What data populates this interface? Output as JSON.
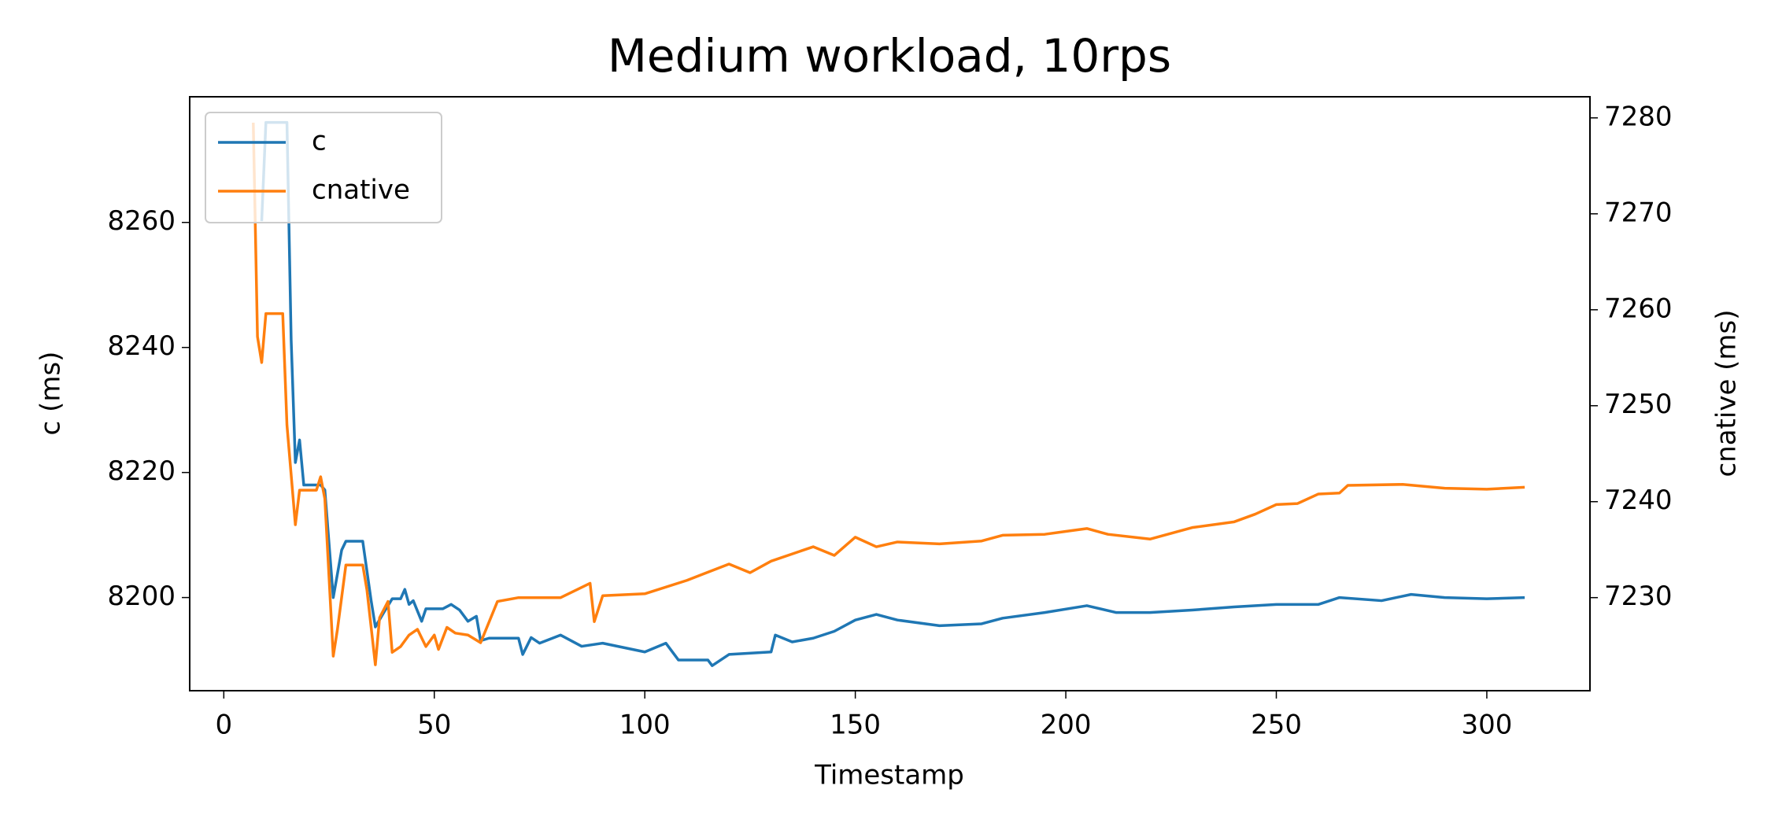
{
  "chart_data": {
    "type": "line",
    "title": "Medium workload, 10rps",
    "xlabel": "Timestamp",
    "ylabel": "c (ms)",
    "y2label": "cnative (ms)",
    "xlim": [
      -8.1,
      324.5
    ],
    "xticks": [
      0,
      50,
      100,
      150,
      200,
      250,
      300
    ],
    "ylim": [
      8185.1,
      8280.1
    ],
    "yticks": [
      8200,
      8220,
      8240,
      8260
    ],
    "y2lim": [
      7220.3,
      7282.2
    ],
    "y2ticks": [
      7230,
      7240,
      7250,
      7260,
      7270,
      7280
    ],
    "legend": "upper left",
    "series": [
      {
        "name": "c",
        "color": "#1f77b4",
        "x": [
          9,
          10,
          15,
          16,
          17,
          18,
          19,
          23,
          24,
          26,
          28,
          29,
          33,
          35,
          36,
          38,
          40,
          42,
          43,
          44,
          45,
          47,
          48,
          52,
          54,
          56,
          58,
          60,
          61,
          63,
          70,
          71,
          73,
          75,
          80,
          85,
          90,
          100,
          105,
          108,
          115,
          116,
          120,
          130,
          131,
          135,
          140,
          145,
          150,
          155,
          160,
          170,
          180,
          185,
          195,
          205,
          212,
          220,
          230,
          240,
          250,
          260,
          265,
          275,
          282,
          290,
          300,
          309
        ],
        "values": [
          8260.2,
          8276,
          8276,
          8241.2,
          8221.6,
          8225.2,
          8218,
          8218,
          8217.2,
          8200,
          8207.6,
          8209,
          8209,
          8199.5,
          8195.3,
          8197.6,
          8199.8,
          8199.8,
          8201.3,
          8198.9,
          8199.5,
          8196.2,
          8198.2,
          8198.2,
          8198.9,
          8198,
          8196.2,
          8197,
          8193.1,
          8193.5,
          8193.5,
          8190.9,
          8193.6,
          8192.7,
          8194,
          8192.2,
          8192.7,
          8191.3,
          8192.7,
          8190,
          8190,
          8189.1,
          8190.9,
          8191.3,
          8194,
          8192.9,
          8193.5,
          8194.6,
          8196.4,
          8197.3,
          8196.4,
          8195.5,
          8195.8,
          8196.7,
          8197.6,
          8198.7,
          8197.6,
          8197.6,
          8198,
          8198.5,
          8198.9,
          8198.9,
          8200,
          8199.5,
          8200.5,
          8200,
          8199.8,
          8200
        ]
      },
      {
        "name": "cnative",
        "color": "#ff7f0e",
        "axis": "y2",
        "x": [
          7,
          8,
          9,
          10,
          14,
          15,
          17,
          18,
          22,
          23,
          24,
          26,
          27,
          29,
          33,
          34,
          36,
          37,
          39,
          40,
          42,
          44,
          46,
          48,
          50,
          51,
          53,
          55,
          58,
          61,
          65,
          70,
          80,
          87,
          88,
          90,
          100,
          110,
          120,
          125,
          130,
          140,
          145,
          150,
          155,
          160,
          170,
          180,
          185,
          195,
          200,
          205,
          210,
          220,
          230,
          240,
          245,
          250,
          255,
          260,
          265,
          267,
          280,
          290,
          300,
          309
        ],
        "values": [
          7279.5,
          7257.2,
          7254.5,
          7259.6,
          7259.6,
          7248,
          7237.6,
          7241.2,
          7241.2,
          7242.6,
          7240.3,
          7223.9,
          7226.7,
          7233.4,
          7233.4,
          7230.8,
          7223,
          7227.9,
          7229.6,
          7224.3,
          7224.9,
          7226.1,
          7226.7,
          7224.9,
          7226.1,
          7224.6,
          7226.9,
          7226.3,
          7226.1,
          7225.3,
          7229.6,
          7230,
          7230,
          7231.5,
          7227.5,
          7230.2,
          7230.4,
          7231.8,
          7233.5,
          7232.6,
          7233.8,
          7235.3,
          7234.4,
          7236.3,
          7235.3,
          7235.8,
          7235.6,
          7235.9,
          7236.5,
          7236.6,
          7236.9,
          7237.2,
          7236.6,
          7236.1,
          7237.3,
          7237.9,
          7238.7,
          7239.7,
          7239.8,
          7240.8,
          7240.9,
          7241.7,
          7241.8,
          7241.4,
          7241.3,
          7241.5
        ]
      }
    ]
  }
}
